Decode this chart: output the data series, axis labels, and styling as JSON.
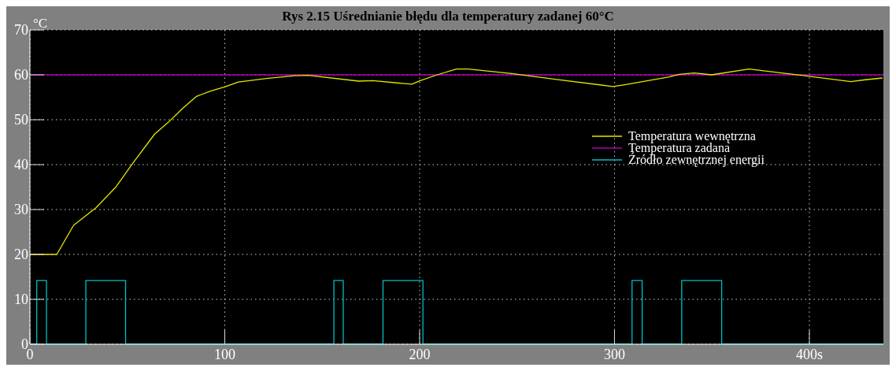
{
  "chart_data": {
    "type": "line",
    "title": "Rys 2.15 Uśrednianie błędu dla temperatury zadanej 60°C",
    "ylabel": "°C",
    "xlim": [
      0,
      438
    ],
    "ylim": [
      0,
      70
    ],
    "xticks": [
      0,
      100,
      200,
      300,
      {
        "value": 400,
        "label": "400s"
      }
    ],
    "yticks": [
      0,
      10,
      20,
      30,
      40,
      50,
      60,
      70
    ],
    "grid": true,
    "legend": "right",
    "series": [
      {
        "name": "Temperatura wewnętrzna",
        "color": "#e6e600",
        "x": [
          0,
          13.8,
          22.4,
          33.9,
          43.9,
          52.6,
          64,
          71.2,
          78.3,
          85.5,
          92.7,
          99.9,
          107,
          121.4,
          135.7,
          142.9,
          168.7,
          175.9,
          196,
          200.3,
          209,
          218.9,
          224.9,
          247.2,
          269.5,
          299.2,
          305.2,
          317.2,
          327.6,
          333.3,
          341,
          349.8,
          369,
          388.3,
          421.3,
          428.7,
          437.5
        ],
        "values": [
          20,
          20,
          26.5,
          30.4,
          34.9,
          40.2,
          46.8,
          49.5,
          52.5,
          55.2,
          56.4,
          57.3,
          58.4,
          59.2,
          59.8,
          59.9,
          58.6,
          58.7,
          57.9,
          58.7,
          60,
          61.3,
          61.3,
          60.3,
          59,
          57.4,
          57.8,
          58.7,
          59.5,
          60.1,
          60.4,
          60,
          61.3,
          60.3,
          58.5,
          58.9,
          59.3
        ]
      },
      {
        "name": "Temperatura zadana",
        "color": "#b000b0",
        "x": [
          0,
          438
        ],
        "values": [
          60,
          60
        ]
      },
      {
        "name": "Źródło zewnętrznej energii",
        "color": "#00c0c0",
        "x": [
          0,
          3.5,
          3.5,
          8.5,
          8.5,
          28.7,
          28.7,
          49.1,
          49.1,
          156,
          156,
          160.8,
          160.8,
          181.2,
          181.2,
          201.7,
          201.7,
          309,
          309,
          314.2,
          314.2,
          334.5,
          334.5,
          355,
          355,
          438
        ],
        "values": [
          0,
          0,
          14.2,
          14.2,
          0,
          0,
          14.2,
          14.2,
          0,
          0,
          14.2,
          14.2,
          0,
          0,
          14.2,
          14.2,
          0,
          0,
          14.2,
          14.2,
          0,
          0,
          14.2,
          14.2,
          0,
          0
        ]
      }
    ]
  }
}
